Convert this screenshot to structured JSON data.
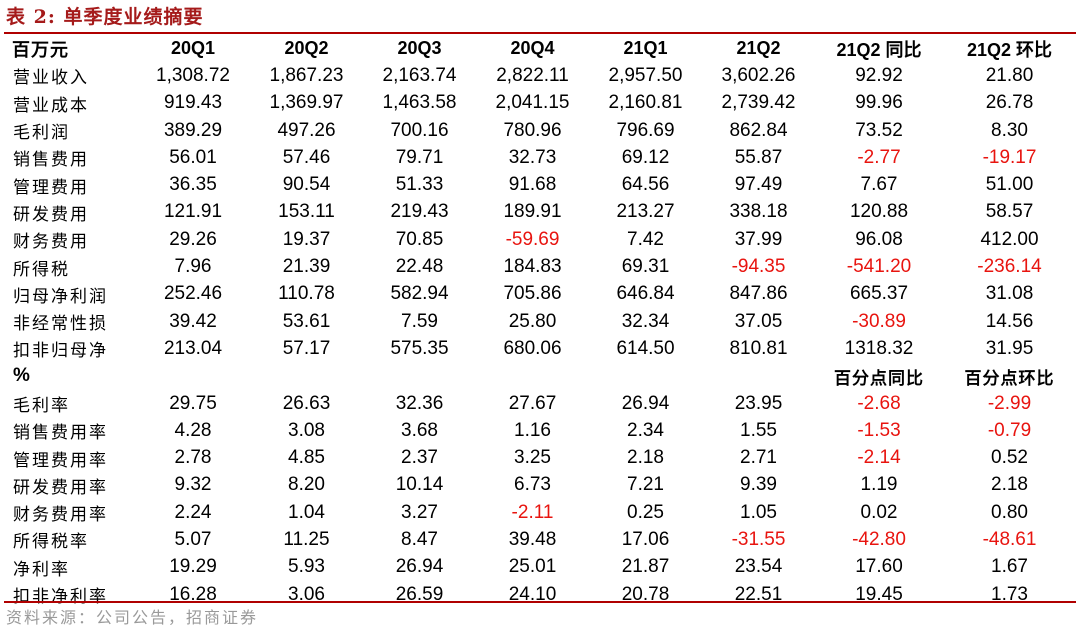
{
  "title": "表 2:  单季度业绩摘要",
  "source": "资料来源：公司公告，招商证券",
  "colors": {
    "title": "#a51a1a",
    "rule": "#b00000",
    "negative": "#e8140f"
  },
  "header": [
    "百万元",
    "20Q1",
    "20Q2",
    "20Q3",
    "20Q4",
    "21Q1",
    "21Q2",
    "21Q2 同比",
    "21Q2 环比"
  ],
  "rows_amount": [
    [
      "营业收入",
      "1,308.72",
      "1,867.23",
      "2,163.74",
      "2,822.11",
      "2,957.50",
      "3,602.26",
      "92.92",
      "21.80"
    ],
    [
      "营业成本",
      "919.43",
      "1,369.97",
      "1,463.58",
      "2,041.15",
      "2,160.81",
      "2,739.42",
      "99.96",
      "26.78"
    ],
    [
      "毛利润",
      "389.29",
      "497.26",
      "700.16",
      "780.96",
      "796.69",
      "862.84",
      "73.52",
      "8.30"
    ],
    [
      "销售费用",
      "56.01",
      "57.46",
      "79.71",
      "32.73",
      "69.12",
      "55.87",
      "-2.77",
      "-19.17"
    ],
    [
      "管理费用",
      "36.35",
      "90.54",
      "51.33",
      "91.68",
      "64.56",
      "97.49",
      "7.67",
      "51.00"
    ],
    [
      "研发费用",
      "121.91",
      "153.11",
      "219.43",
      "189.91",
      "213.27",
      "338.18",
      "120.88",
      "58.57"
    ],
    [
      "财务费用",
      "29.26",
      "19.37",
      "70.85",
      "-59.69",
      "7.42",
      "37.99",
      "96.08",
      "412.00"
    ],
    [
      "所得税",
      "7.96",
      "21.39",
      "22.48",
      "184.83",
      "69.31",
      "-94.35",
      "-541.20",
      "-236.14"
    ],
    [
      "归母净利润",
      "252.46",
      "110.78",
      "582.94",
      "705.86",
      "646.84",
      "847.86",
      "665.37",
      "31.08"
    ],
    [
      "非经常性损",
      "39.42",
      "53.61",
      "7.59",
      "25.80",
      "32.34",
      "37.05",
      "-30.89",
      "14.56"
    ],
    [
      "扣非归母净",
      "213.04",
      "57.17",
      "575.35",
      "680.06",
      "614.50",
      "810.81",
      "1318.32",
      "31.95"
    ]
  ],
  "pct_header": [
    "%",
    "",
    "",
    "",
    "",
    "",
    "",
    "百分点同比",
    "百分点环比"
  ],
  "rows_ratio": [
    [
      "毛利率",
      "29.75",
      "26.63",
      "32.36",
      "27.67",
      "26.94",
      "23.95",
      "-2.68",
      "-2.99"
    ],
    [
      "销售费用率",
      "4.28",
      "3.08",
      "3.68",
      "1.16",
      "2.34",
      "1.55",
      "-1.53",
      "-0.79"
    ],
    [
      "管理费用率",
      "2.78",
      "4.85",
      "2.37",
      "3.25",
      "2.18",
      "2.71",
      "-2.14",
      "0.52"
    ],
    [
      "研发费用率",
      "9.32",
      "8.20",
      "10.14",
      "6.73",
      "7.21",
      "9.39",
      "1.19",
      "2.18"
    ],
    [
      "财务费用率",
      "2.24",
      "1.04",
      "3.27",
      "-2.11",
      "0.25",
      "1.05",
      "0.02",
      "0.80"
    ],
    [
      "所得税率",
      "5.07",
      "11.25",
      "8.47",
      "39.48",
      "17.06",
      "-31.55",
      "-42.80",
      "-48.61"
    ],
    [
      "净利率",
      "19.29",
      "5.93",
      "26.94",
      "25.01",
      "21.87",
      "23.54",
      "17.60",
      "1.67"
    ],
    [
      "扣非净利率",
      "16.28",
      "3.06",
      "26.59",
      "24.10",
      "20.78",
      "22.51",
      "19.45",
      "1.73"
    ]
  ]
}
